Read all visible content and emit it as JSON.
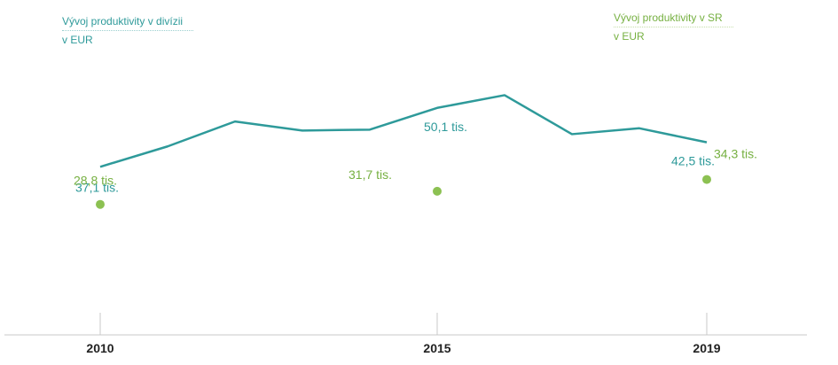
{
  "legend": {
    "division_line1": "Vývoj produktivity v divízii",
    "division_line2": "v EUR",
    "sr_line1": "Vývoj produktivity v SR",
    "sr_line2": "v EUR"
  },
  "colors": {
    "division": "#2e9a9a",
    "sr": "#8cc152",
    "sr_label": "#76b041",
    "axis": "#c8c8c8",
    "tick_text": "#222222"
  },
  "chart_data": {
    "type": "line",
    "title": "",
    "xlabel": "",
    "ylabel": "",
    "x": [
      2010,
      2011,
      2012,
      2013,
      2014,
      2015,
      2016,
      2017,
      2018,
      2019
    ],
    "xticks": [
      "2010",
      "2015",
      "2019"
    ],
    "ylim": [
      0,
      70
    ],
    "series": [
      {
        "name": "Vývoj produktivity v divízii v EUR",
        "kind": "line",
        "values": [
          37.1,
          41.6,
          47.1,
          45.1,
          45.3,
          50.1,
          52.9,
          44.3,
          45.6,
          42.5
        ],
        "labels": [
          {
            "x": 2010,
            "text": "37,1 tis."
          },
          {
            "x": 2015,
            "text": "50,1 tis."
          },
          {
            "x": 2019,
            "text": "42,5 tis."
          }
        ]
      },
      {
        "name": "Vývoj produktivity v SR v EUR",
        "kind": "points",
        "values": [
          {
            "x": 2010,
            "y": 28.8
          },
          {
            "x": 2015,
            "y": 31.7
          },
          {
            "x": 2019,
            "y": 34.3
          }
        ],
        "labels": [
          {
            "x": 2010,
            "text": "28,8 tis."
          },
          {
            "x": 2015,
            "text": "31,7 tis."
          },
          {
            "x": 2019,
            "text": "34,3 tis."
          }
        ]
      }
    ],
    "grid": false
  }
}
